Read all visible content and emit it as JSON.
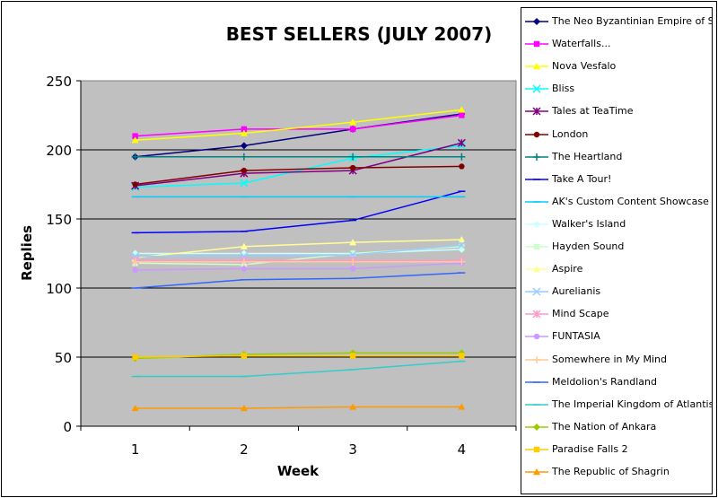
{
  "chart_data": {
    "type": "line",
    "title": "BEST SELLERS (JULY 2007)",
    "xlabel": "Week",
    "ylabel": "Replies",
    "categories": [
      "1",
      "2",
      "3",
      "4"
    ],
    "ylim": [
      0,
      250
    ],
    "yticks": [
      0,
      50,
      100,
      150,
      200,
      250
    ],
    "grid": true,
    "legend_position": "right",
    "plot_background": "#c0c0c0",
    "series": [
      {
        "name": "The Neo Byzantinian Empire of Stropon",
        "color": "#000080",
        "marker": "diamond",
        "values": [
          195,
          203,
          215,
          226
        ]
      },
      {
        "name": "Waterfalls...",
        "color": "#ff00ff",
        "marker": "square",
        "values": [
          210,
          215,
          215,
          225
        ]
      },
      {
        "name": "Nova Vesfalo",
        "color": "#ffff00",
        "marker": "triangle",
        "values": [
          207,
          212,
          220,
          229
        ]
      },
      {
        "name": "Bliss",
        "color": "#00ffff",
        "marker": "x",
        "values": [
          173,
          176,
          194,
          203
        ]
      },
      {
        "name": "Tales at TeaTime",
        "color": "#800080",
        "marker": "star",
        "values": [
          174,
          183,
          185,
          205
        ]
      },
      {
        "name": "London",
        "color": "#800000",
        "marker": "circle",
        "values": [
          175,
          185,
          187,
          188
        ]
      },
      {
        "name": "The Heartland",
        "color": "#008080",
        "marker": "plus",
        "values": [
          195,
          195,
          195,
          195
        ]
      },
      {
        "name": "Take A Tour!",
        "color": "#0000ff",
        "marker": "dash",
        "values": [
          140,
          141,
          149,
          170
        ]
      },
      {
        "name": "AK's Custom Content Showcase",
        "color": "#00ccff",
        "marker": "dash",
        "values": [
          166,
          166,
          166,
          166
        ]
      },
      {
        "name": "Walker's Island",
        "color": "#ccffff",
        "marker": "diamond",
        "values": [
          125,
          125,
          125,
          128
        ]
      },
      {
        "name": "Hayden Sound",
        "color": "#ccffcc",
        "marker": "square",
        "values": [
          118,
          117,
          125,
          130
        ]
      },
      {
        "name": "Aspire",
        "color": "#ffff99",
        "marker": "triangle",
        "values": [
          122,
          130,
          133,
          135
        ]
      },
      {
        "name": "Aurelianis",
        "color": "#99ccff",
        "marker": "x",
        "values": [
          123,
          123,
          124,
          131
        ]
      },
      {
        "name": "Mind Scape",
        "color": "#ff99cc",
        "marker": "star",
        "values": [
          120,
          120,
          120,
          120
        ]
      },
      {
        "name": "FUNTASIA",
        "color": "#cc99ff",
        "marker": "circle",
        "values": [
          113,
          114,
          114,
          118
        ]
      },
      {
        "name": "Somewhere in My Mind",
        "color": "#ffcc99",
        "marker": "plus",
        "values": [
          119,
          119,
          119,
          119
        ]
      },
      {
        "name": "Meldolion's Randland",
        "color": "#3366ff",
        "marker": "dash",
        "values": [
          100,
          106,
          107,
          111
        ]
      },
      {
        "name": "The Imperial Kingdom of Atlantis",
        "color": "#33cccc",
        "marker": "dash",
        "values": [
          36,
          36,
          41,
          47
        ]
      },
      {
        "name": "The Nation of Ankara",
        "color": "#99cc00",
        "marker": "diamond",
        "values": [
          49,
          52,
          53,
          53
        ]
      },
      {
        "name": "Paradise Falls 2",
        "color": "#ffcc00",
        "marker": "square",
        "values": [
          50,
          51,
          51,
          51
        ]
      },
      {
        "name": "The Republic of Shagrin",
        "color": "#ff9900",
        "marker": "triangle",
        "values": [
          13,
          13,
          14,
          14
        ]
      }
    ]
  }
}
